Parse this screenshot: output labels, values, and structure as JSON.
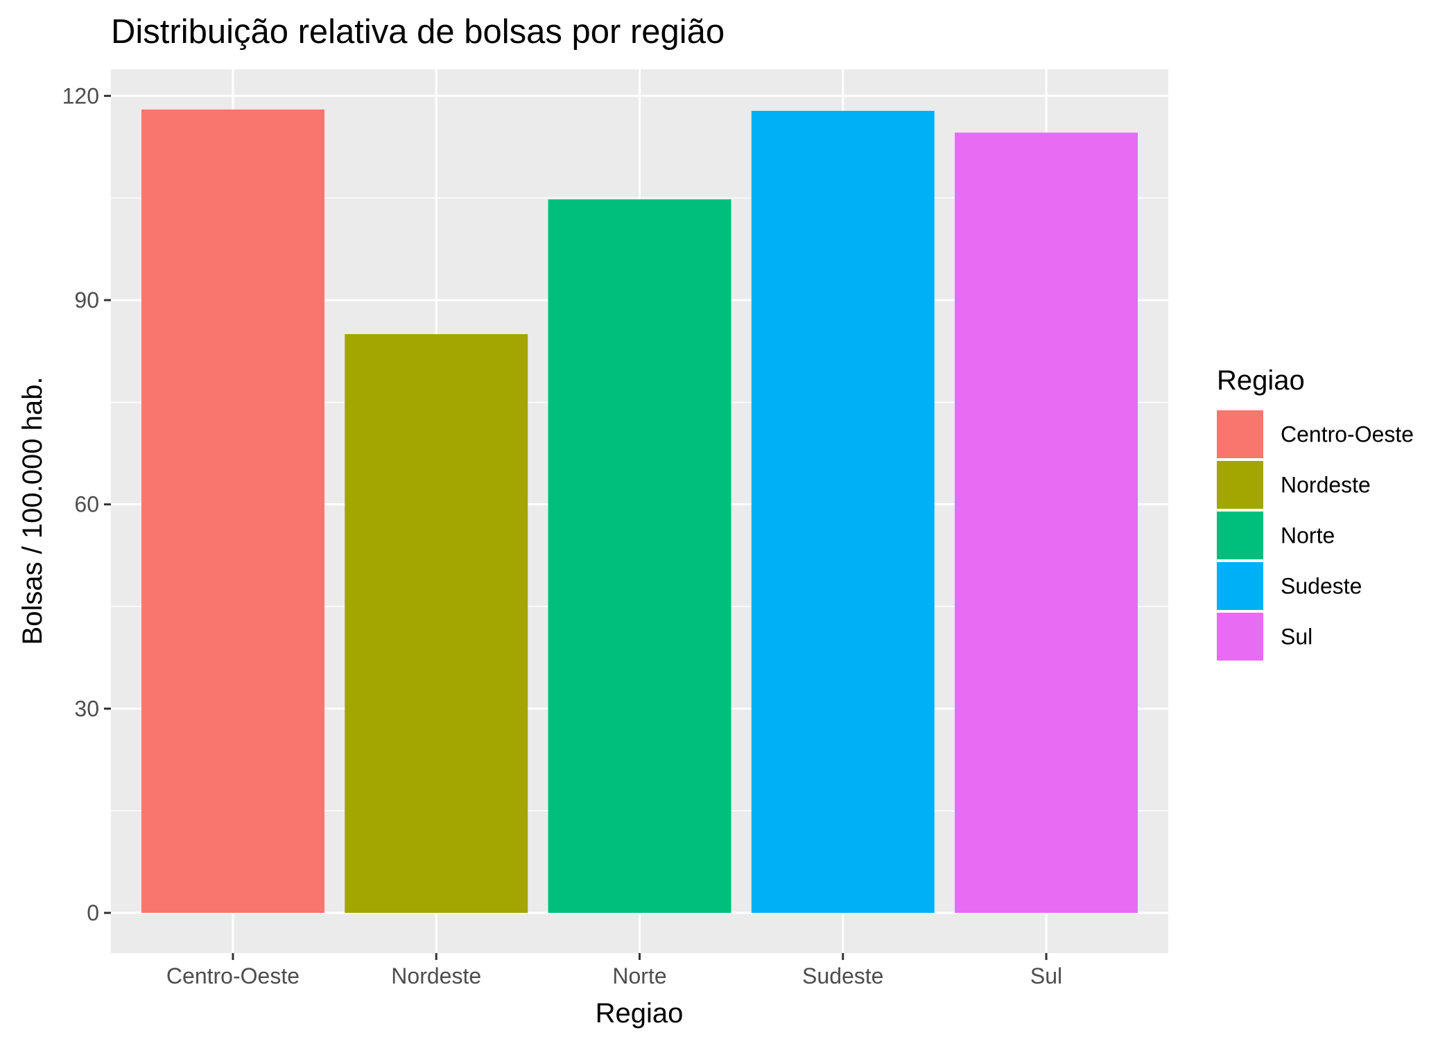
{
  "chart_data": {
    "type": "bar",
    "title": "Distribuição relativa de bolsas por região",
    "xlabel": "Regiao",
    "ylabel": "Bolsas / 100.000 hab.",
    "categories": [
      "Centro-Oeste",
      "Nordeste",
      "Norte",
      "Sudeste",
      "Sul"
    ],
    "values": [
      118,
      85,
      104.8,
      117.8,
      114.6
    ],
    "colors": [
      "#F8766D",
      "#A3A500",
      "#00BF7D",
      "#00B0F6",
      "#E76BF3"
    ],
    "ylim": [
      -5.9,
      123.9
    ],
    "yticks": [
      0,
      30,
      60,
      90,
      120
    ],
    "yticks_minor": [
      15,
      45,
      75,
      105
    ],
    "grid": true,
    "panel_background": "#EBEBEB",
    "legend": {
      "title": "Regiao",
      "placement": "right",
      "items": [
        "Centro-Oeste",
        "Nordeste",
        "Norte",
        "Sudeste",
        "Sul"
      ]
    }
  }
}
